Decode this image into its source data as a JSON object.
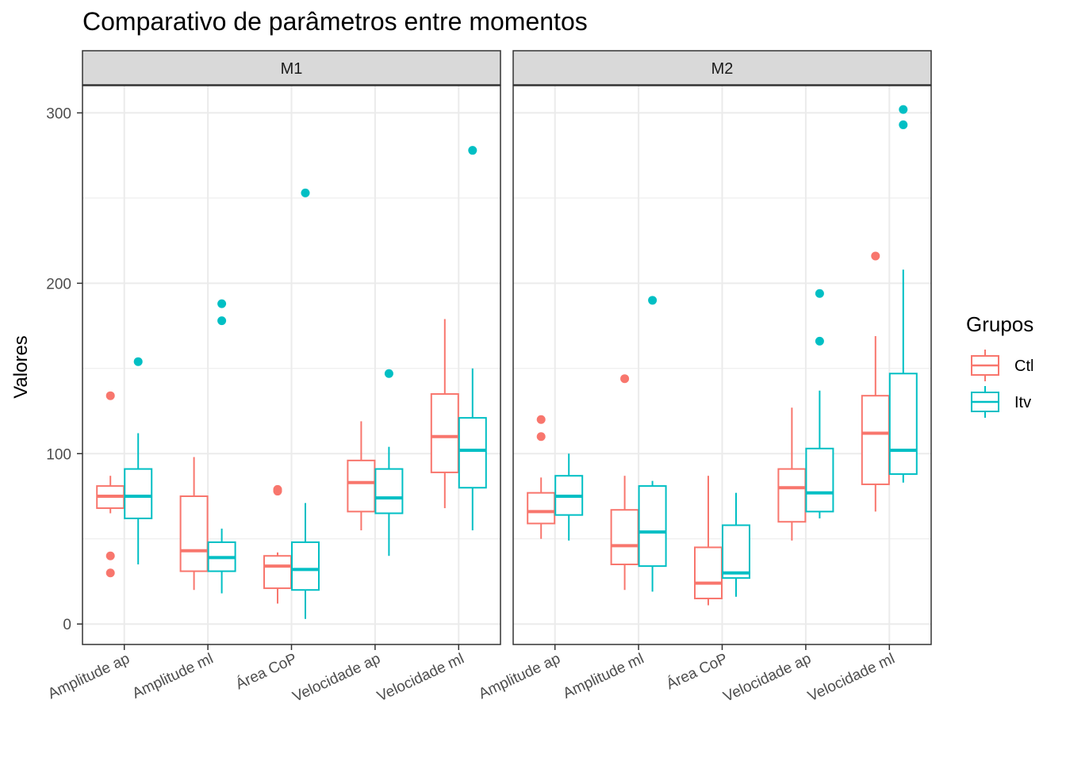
{
  "chart_data": {
    "type": "boxplot",
    "title": "Comparativo de parâmetros entre momentos",
    "ylabel": "Valores",
    "xlabel": "",
    "ylim": [
      -12,
      316
    ],
    "y_ticks": [
      0,
      100,
      200,
      300
    ],
    "y_tick_labels": [
      "0",
      "100",
      "200",
      "300"
    ],
    "categories": [
      "Amplitude ap",
      "Amplitude ml",
      "Área CoP",
      "Velocidade ap",
      "Velocidade ml"
    ],
    "legend": {
      "title": "Grupos",
      "placement": "right",
      "entries": [
        {
          "name": "Ctl",
          "color": "#F8766D"
        },
        {
          "name": "Itv",
          "color": "#00BFC4"
        }
      ]
    },
    "facets": [
      {
        "label": "M1",
        "series": [
          {
            "name": "Ctl",
            "color": "#F8766D",
            "boxes": [
              {
                "min": 65,
                "q1": 68,
                "median": 75,
                "q3": 81,
                "max": 87,
                "outliers": [
                  134,
                  40,
                  30
                ]
              },
              {
                "min": 20,
                "q1": 31,
                "median": 43,
                "q3": 75,
                "max": 98,
                "outliers": []
              },
              {
                "min": 12,
                "q1": 21,
                "median": 34,
                "q3": 40,
                "max": 42,
                "outliers": [
                  78,
                  79
                ]
              },
              {
                "min": 55,
                "q1": 66,
                "median": 83,
                "q3": 96,
                "max": 119,
                "outliers": []
              },
              {
                "min": 68,
                "q1": 89,
                "median": 110,
                "q3": 135,
                "max": 179,
                "outliers": []
              }
            ]
          },
          {
            "name": "Itv",
            "color": "#00BFC4",
            "boxes": [
              {
                "min": 35,
                "q1": 62,
                "median": 75,
                "q3": 91,
                "max": 112,
                "outliers": [
                  154
                ]
              },
              {
                "min": 18,
                "q1": 31,
                "median": 39,
                "q3": 48,
                "max": 56,
                "outliers": [
                  188,
                  178
                ]
              },
              {
                "min": 3,
                "q1": 20,
                "median": 32,
                "q3": 48,
                "max": 71,
                "outliers": [
                  253
                ]
              },
              {
                "min": 40,
                "q1": 65,
                "median": 74,
                "q3": 91,
                "max": 104,
                "outliers": [
                  147
                ]
              },
              {
                "min": 55,
                "q1": 80,
                "median": 102,
                "q3": 121,
                "max": 150,
                "outliers": [
                  278
                ]
              }
            ]
          }
        ]
      },
      {
        "label": "M2",
        "series": [
          {
            "name": "Ctl",
            "color": "#F8766D",
            "boxes": [
              {
                "min": 50,
                "q1": 59,
                "median": 66,
                "q3": 77,
                "max": 86,
                "outliers": [
                  120,
                  110
                ]
              },
              {
                "min": 20,
                "q1": 35,
                "median": 46,
                "q3": 67,
                "max": 87,
                "outliers": [
                  144
                ]
              },
              {
                "min": 11,
                "q1": 15,
                "median": 24,
                "q3": 45,
                "max": 87,
                "outliers": []
              },
              {
                "min": 49,
                "q1": 60,
                "median": 80,
                "q3": 91,
                "max": 127,
                "outliers": []
              },
              {
                "min": 66,
                "q1": 82,
                "median": 112,
                "q3": 134,
                "max": 169,
                "outliers": [
                  216
                ]
              }
            ]
          },
          {
            "name": "Itv",
            "color": "#00BFC4",
            "boxes": [
              {
                "min": 49,
                "q1": 64,
                "median": 75,
                "q3": 87,
                "max": 100,
                "outliers": []
              },
              {
                "min": 19,
                "q1": 34,
                "median": 54,
                "q3": 81,
                "max": 84,
                "outliers": [
                  190
                ]
              },
              {
                "min": 16,
                "q1": 27,
                "median": 30,
                "q3": 58,
                "max": 77,
                "outliers": []
              },
              {
                "min": 62,
                "q1": 66,
                "median": 77,
                "q3": 103,
                "max": 137,
                "outliers": [
                  194,
                  166
                ]
              },
              {
                "min": 83,
                "q1": 88,
                "median": 102,
                "q3": 147,
                "max": 208,
                "outliers": [
                  302,
                  293
                ]
              }
            ]
          }
        ]
      }
    ]
  }
}
